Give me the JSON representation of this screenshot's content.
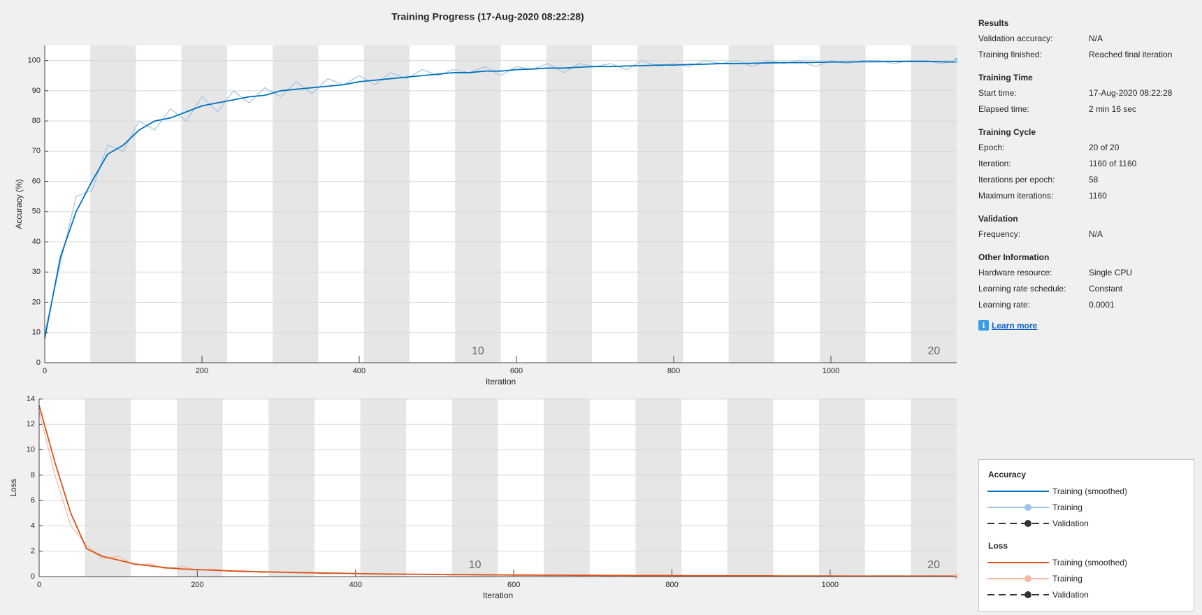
{
  "title": "Training Progress (17-Aug-2020 08:22:28)",
  "chart_data": [
    {
      "type": "line",
      "ylabel": "Accuracy (%)",
      "xlabel": "Iteration",
      "xlim": [
        0,
        1160
      ],
      "xticks": [
        0,
        200,
        400,
        600,
        800,
        1000
      ],
      "ylim": [
        0,
        105
      ],
      "yticks": [
        0,
        10,
        20,
        30,
        40,
        50,
        60,
        70,
        80,
        90,
        100
      ],
      "grid": true,
      "iterations_per_epoch": 58,
      "epoch_labels": [
        10,
        20
      ],
      "x": [
        0,
        20,
        40,
        60,
        80,
        100,
        120,
        140,
        160,
        180,
        200,
        220,
        240,
        260,
        280,
        300,
        320,
        340,
        360,
        380,
        400,
        420,
        440,
        460,
        480,
        500,
        520,
        540,
        560,
        580,
        600,
        620,
        640,
        660,
        680,
        700,
        720,
        740,
        760,
        780,
        800,
        820,
        840,
        860,
        880,
        900,
        920,
        940,
        960,
        980,
        1000,
        1020,
        1040,
        1060,
        1080,
        1100,
        1120,
        1140,
        1160
      ],
      "series": [
        {
          "color": "#9DC3E6",
          "values": [
            10,
            33,
            55,
            57,
            72,
            70,
            80,
            77,
            84,
            80,
            88,
            83,
            90,
            86,
            91,
            88,
            93,
            89,
            94,
            92,
            95,
            92,
            96,
            94,
            97,
            95,
            97,
            96,
            98,
            95,
            98,
            97,
            99,
            96,
            99,
            98,
            99,
            97,
            100,
            98,
            99,
            98,
            100,
            99,
            100,
            98,
            100,
            99,
            100,
            98,
            100,
            99,
            100,
            100,
            99,
            100,
            100,
            99,
            100
          ]
        },
        {
          "color": "#0072BD",
          "values": [
            8,
            35,
            50,
            60,
            69,
            72,
            77,
            80,
            81,
            83,
            85,
            86,
            87,
            88,
            88.5,
            90,
            90.5,
            91,
            91.5,
            92,
            93,
            93.5,
            94,
            94.5,
            95,
            95.5,
            96,
            96,
            96.5,
            96.5,
            97,
            97.2,
            97.5,
            97.5,
            97.8,
            98,
            98,
            98.2,
            98.3,
            98.5,
            98.5,
            98.7,
            98.8,
            99,
            99,
            99.1,
            99.2,
            99.3,
            99.3,
            99.4,
            99.5,
            99.5,
            99.6,
            99.6,
            99.7,
            99.7,
            99.7,
            99.6,
            99.5
          ]
        }
      ]
    },
    {
      "type": "line",
      "ylabel": "Loss",
      "xlabel": "Iteration",
      "xlim": [
        0,
        1160
      ],
      "xticks": [
        0,
        200,
        400,
        600,
        800,
        1000
      ],
      "ylim": [
        0,
        14
      ],
      "yticks": [
        0,
        2,
        4,
        6,
        8,
        10,
        12,
        14
      ],
      "grid": true,
      "iterations_per_epoch": 58,
      "epoch_labels": [
        10,
        20
      ],
      "x": [
        0,
        20,
        40,
        60,
        80,
        100,
        120,
        140,
        160,
        180,
        200,
        220,
        240,
        260,
        280,
        300,
        320,
        340,
        360,
        380,
        400,
        420,
        440,
        460,
        480,
        500,
        520,
        540,
        560,
        580,
        600,
        620,
        640,
        660,
        680,
        700,
        720,
        740,
        760,
        780,
        800,
        820,
        840,
        860,
        880,
        900,
        920,
        940,
        960,
        980,
        1000,
        1020,
        1040,
        1060,
        1080,
        1100,
        1120,
        1140,
        1160
      ],
      "series": [
        {
          "color": "#F4B8A0",
          "values": [
            13,
            8,
            4,
            2.5,
            1.4,
            1.6,
            0.9,
            1.0,
            0.6,
            0.8,
            0.5,
            0.6,
            0.4,
            0.5,
            0.3,
            0.4,
            0.3,
            0.35,
            0.2,
            0.3,
            0.2,
            0.25,
            0.15,
            0.2,
            0.15,
            0.2,
            0.1,
            0.15,
            0.1,
            0.15,
            0.1,
            0.1,
            0.08,
            0.12,
            0.06,
            0.1,
            0.05,
            0.1,
            0.05,
            0.08,
            0.04,
            0.08,
            0.04,
            0.06,
            0.03,
            0.06,
            0.03,
            0.05,
            0.02,
            0.05,
            0.02,
            0.04,
            0.02,
            0.04,
            0.02,
            0.03,
            0.02,
            0.03,
            0.02
          ]
        },
        {
          "color": "#D95319",
          "values": [
            13.5,
            9,
            5,
            2.2,
            1.6,
            1.3,
            1.0,
            0.85,
            0.7,
            0.6,
            0.55,
            0.5,
            0.45,
            0.4,
            0.38,
            0.35,
            0.32,
            0.3,
            0.28,
            0.26,
            0.24,
            0.22,
            0.2,
            0.19,
            0.18,
            0.17,
            0.16,
            0.15,
            0.14,
            0.13,
            0.12,
            0.12,
            0.11,
            0.11,
            0.1,
            0.1,
            0.09,
            0.09,
            0.08,
            0.08,
            0.08,
            0.07,
            0.07,
            0.07,
            0.06,
            0.06,
            0.06,
            0.05,
            0.05,
            0.05,
            0.05,
            0.04,
            0.04,
            0.04,
            0.04,
            0.04,
            0.04,
            0.04,
            0.04
          ]
        }
      ]
    }
  ],
  "info": {
    "sections": [
      {
        "title": "Results",
        "rows": [
          [
            "Validation accuracy:",
            "N/A"
          ],
          [
            "Training finished:",
            "Reached final iteration"
          ]
        ]
      },
      {
        "title": "Training Time",
        "rows": [
          [
            "Start time:",
            "17-Aug-2020 08:22:28"
          ],
          [
            "Elapsed time:",
            "2 min 16 sec"
          ]
        ]
      },
      {
        "title": "Training Cycle",
        "rows": [
          [
            "Epoch:",
            "20 of 20"
          ],
          [
            "Iteration:",
            "1160 of 1160"
          ],
          [
            "Iterations per epoch:",
            "58"
          ],
          [
            "Maximum iterations:",
            "1160"
          ]
        ]
      },
      {
        "title": "Validation",
        "rows": [
          [
            "Frequency:",
            "N/A"
          ]
        ]
      },
      {
        "title": "Other Information",
        "rows": [
          [
            "Hardware resource:",
            "Single CPU"
          ],
          [
            "Learning rate schedule:",
            "Constant"
          ],
          [
            "Learning rate:",
            "0.0001"
          ]
        ]
      }
    ],
    "link": "Learn more"
  },
  "legend": {
    "groups": [
      {
        "title": "Accuracy",
        "entries": [
          "Training (smoothed)",
          "Training",
          "Validation"
        ]
      },
      {
        "title": "Loss",
        "entries": [
          "Training (smoothed)",
          "Training",
          "Validation"
        ]
      }
    ]
  }
}
